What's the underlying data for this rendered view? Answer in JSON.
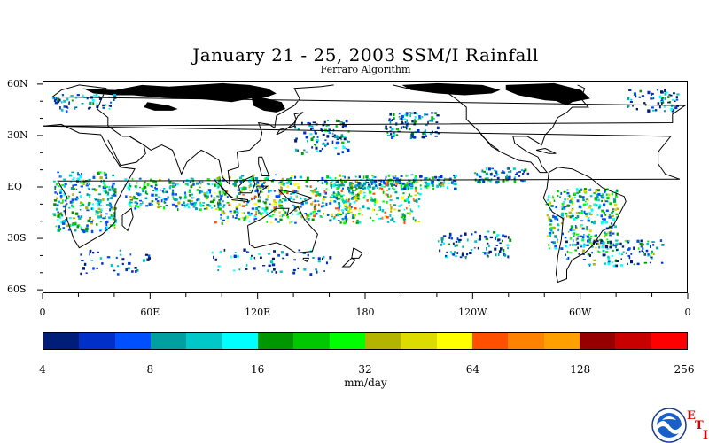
{
  "title": "January 21 - 25, 2003 SSM/I Rainfall",
  "subtitle": "Ferraro Algorithm",
  "map": {
    "lat_labels": [
      "60N",
      "30N",
      "EQ",
      "30S",
      "60S"
    ],
    "lat_values": [
      60,
      30,
      0,
      -30,
      -60
    ],
    "lon_labels": [
      "0",
      "60E",
      "120E",
      "180",
      "120W",
      "60W",
      "0"
    ],
    "lon_values": [
      0,
      60,
      120,
      180,
      240,
      300,
      360
    ],
    "lat_range": [
      -62,
      62
    ],
    "lon_range": [
      0,
      360
    ]
  },
  "colorbar": {
    "colors": [
      "#001e78",
      "#0030c8",
      "#0050ff",
      "#00a0a0",
      "#00c8c8",
      "#00ffff",
      "#009600",
      "#00c800",
      "#00ff00",
      "#b4b400",
      "#dcdc00",
      "#ffff00",
      "#ff5000",
      "#ff8200",
      "#ffa000",
      "#960000",
      "#c80000",
      "#ff0000"
    ],
    "tick_labels": [
      "4",
      "8",
      "16",
      "32",
      "64",
      "128",
      "256"
    ],
    "unit": "mm/day"
  },
  "logo": {
    "name": "NOAA",
    "text": "NOAA",
    "eti_letters": [
      "E",
      "T",
      "I"
    ]
  },
  "colors": {
    "land_outline": "#000000",
    "no_data": "#000000",
    "background": "#ffffff"
  }
}
